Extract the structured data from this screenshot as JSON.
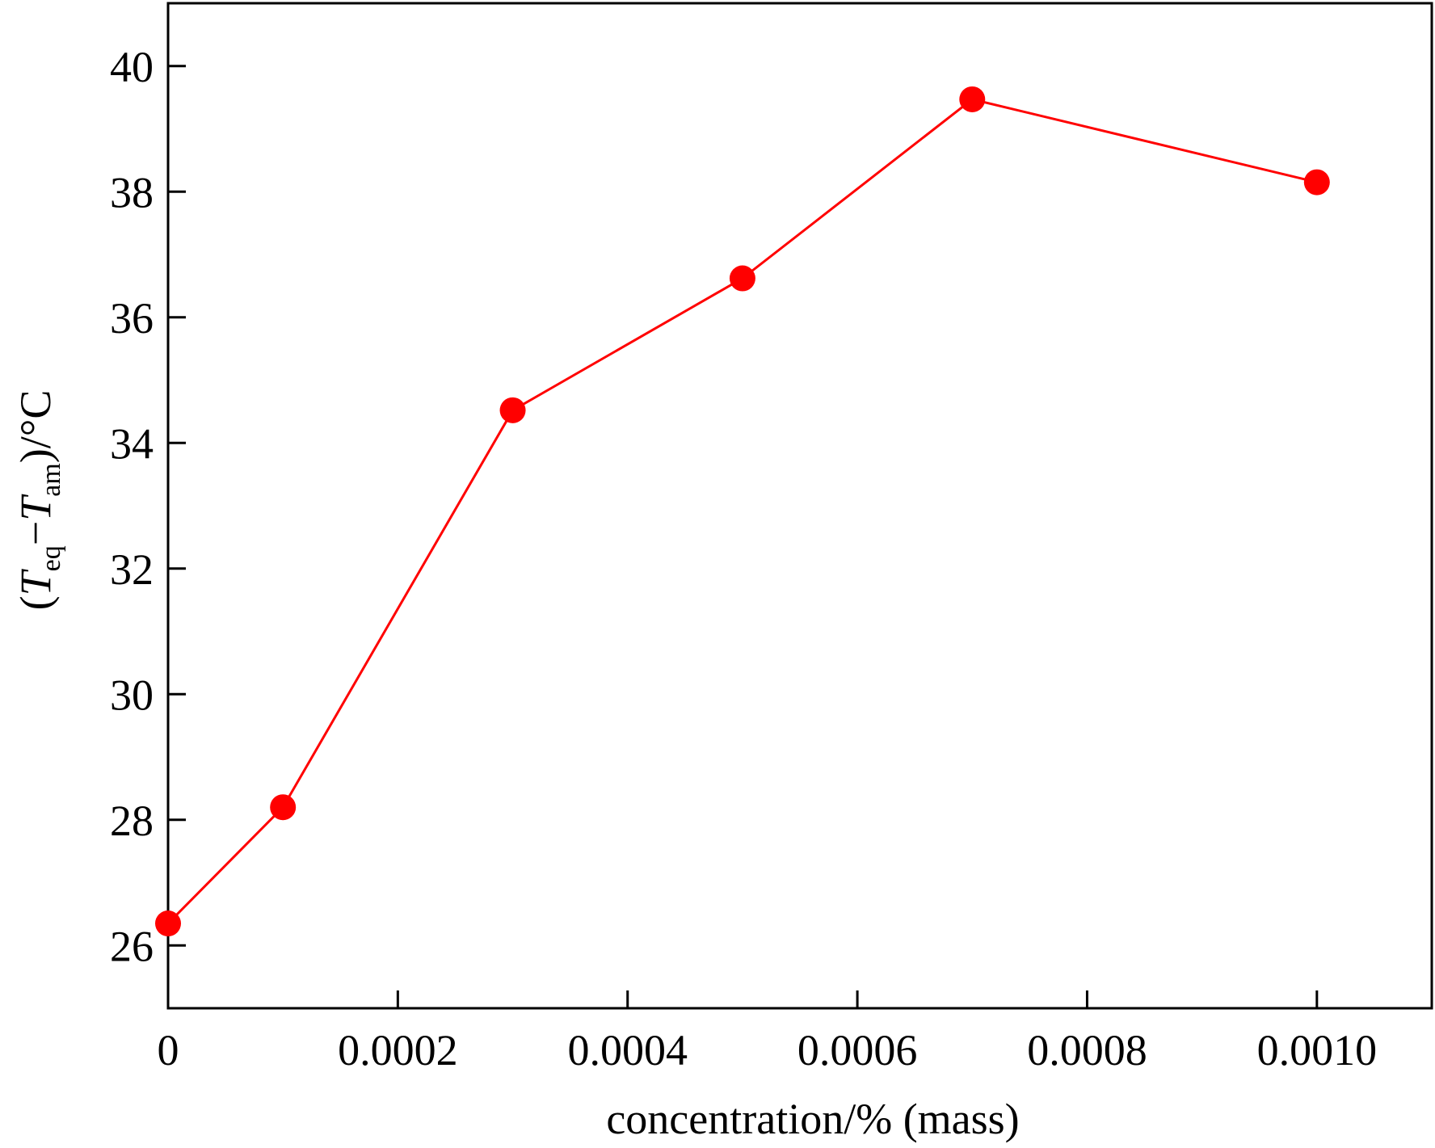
{
  "chart_data": {
    "type": "line",
    "xlabel": "concentration/% (mass)",
    "ylabel": {
      "open": "(",
      "t1": "T",
      "sub1": "eq",
      "minus": "−",
      "t2": "T",
      "sub2": "am",
      "close": ")/°C"
    },
    "xlim": [
      0,
      0.0011
    ],
    "ylim": [
      25,
      41
    ],
    "xticks": [
      {
        "value": 0,
        "label": "0"
      },
      {
        "value": 0.0002,
        "label": "0.0002"
      },
      {
        "value": 0.0004,
        "label": "0.0004"
      },
      {
        "value": 0.0006,
        "label": "0.0006"
      },
      {
        "value": 0.0008,
        "label": "0.0008"
      },
      {
        "value": 0.001,
        "label": "0.0010"
      }
    ],
    "yticks": [
      {
        "value": 26,
        "label": "26"
      },
      {
        "value": 28,
        "label": "28"
      },
      {
        "value": 30,
        "label": "30"
      },
      {
        "value": 32,
        "label": "32"
      },
      {
        "value": 34,
        "label": "34"
      },
      {
        "value": 36,
        "label": "36"
      },
      {
        "value": 38,
        "label": "38"
      },
      {
        "value": 40,
        "label": "40"
      }
    ],
    "grid": false,
    "series": [
      {
        "color": "#ff0000",
        "marker": "circle",
        "x": [
          0,
          0.0001,
          0.0003,
          0.0005,
          0.0007,
          0.001
        ],
        "y": [
          26.35,
          28.2,
          34.52,
          36.62,
          39.47,
          38.15
        ]
      }
    ]
  }
}
